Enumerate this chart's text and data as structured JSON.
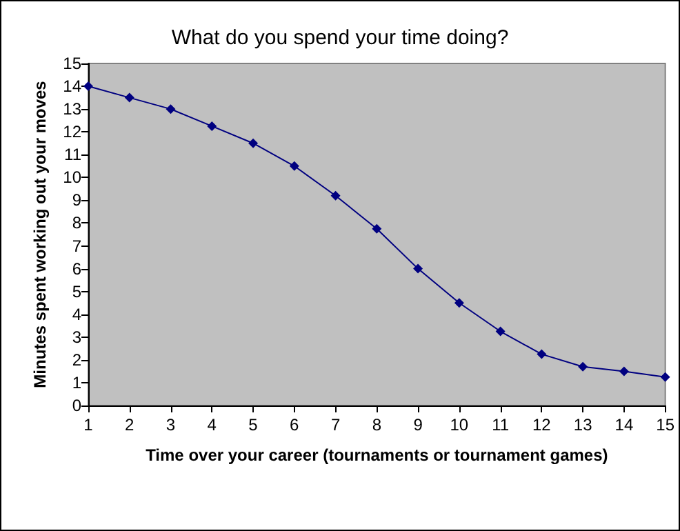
{
  "chart_data": {
    "type": "line",
    "title": "What do you spend your time doing?",
    "xlabel": "Time over your career (tournaments or tournament games)",
    "ylabel": "Minutes spent working out your moves",
    "x": [
      1,
      2,
      3,
      4,
      5,
      6,
      7,
      8,
      9,
      10,
      11,
      12,
      13,
      14,
      15
    ],
    "series": [
      {
        "color": "#000080",
        "values": [
          14,
          13.5,
          13,
          12.25,
          11.5,
          10.5,
          9.2,
          7.75,
          6,
          4.5,
          3.25,
          2.25,
          1.7,
          1.5,
          1.25
        ]
      }
    ],
    "xlim": [
      1,
      15
    ],
    "xticks": [
      1,
      2,
      3,
      4,
      5,
      6,
      7,
      8,
      9,
      10,
      11,
      12,
      13,
      14,
      15
    ],
    "ylim": [
      0,
      15
    ],
    "yticks": [
      0,
      1,
      2,
      3,
      4,
      5,
      6,
      7,
      8,
      9,
      10,
      11,
      12,
      13,
      14,
      15
    ],
    "grid": false,
    "marker": "diamond",
    "line_style": "solid"
  }
}
